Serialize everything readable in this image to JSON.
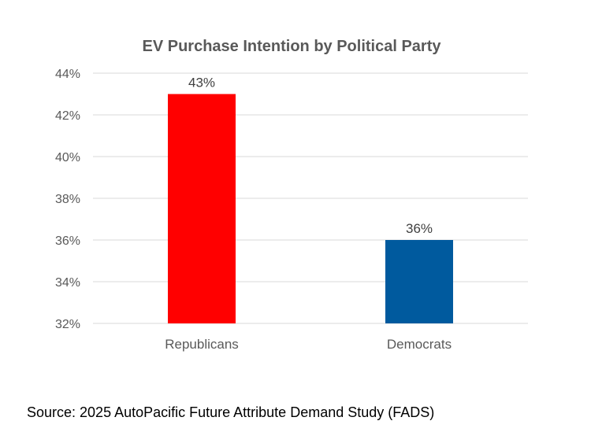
{
  "chart_data": {
    "type": "bar",
    "title": "EV Purchase Intention by Political Party",
    "categories": [
      "Republicans",
      "Democrats"
    ],
    "values": [
      43,
      36
    ],
    "data_labels": [
      "43%",
      "36%"
    ],
    "colors": [
      "#ff0000",
      "#005a9e"
    ],
    "ylim": [
      32,
      44
    ],
    "yticks": [
      32,
      34,
      36,
      38,
      40,
      42,
      44
    ],
    "ytick_labels": [
      "32%",
      "34%",
      "36%",
      "38%",
      "40%",
      "42%",
      "44%"
    ],
    "xlabel": "",
    "ylabel": "",
    "grid": true,
    "legend": "none"
  },
  "source": "Source: 2025 AutoPacific Future Attribute Demand Study (FADS)"
}
